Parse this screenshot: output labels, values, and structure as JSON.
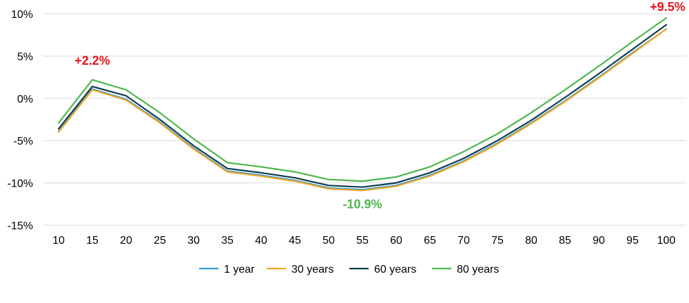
{
  "chart_data": {
    "type": "line",
    "x": [
      10,
      15,
      20,
      25,
      30,
      35,
      40,
      45,
      50,
      55,
      60,
      65,
      70,
      75,
      80,
      85,
      90,
      95,
      100
    ],
    "x_tick_labels": [
      "10",
      "15",
      "20",
      "25",
      "30",
      "35",
      "40",
      "45",
      "50",
      "55",
      "60",
      "65",
      "70",
      "75",
      "80",
      "85",
      "90",
      "95",
      "100"
    ],
    "ylim": [
      -15,
      10
    ],
    "y_ticks": [
      10,
      5,
      0,
      -5,
      -10,
      -15
    ],
    "y_tick_labels": [
      "10%",
      "5%",
      "0%",
      "-5%",
      "-10%",
      "-15%"
    ],
    "grid": "horizontal",
    "legend_position": "bottom",
    "series": [
      {
        "name": "1 year",
        "color": "#2E9BD6",
        "values": [
          -3.9,
          1.1,
          -0.1,
          -2.8,
          -5.9,
          -8.6,
          -9.1,
          -9.7,
          -10.6,
          -10.8,
          -10.3,
          -9.1,
          -7.4,
          -5.3,
          -2.9,
          -0.3,
          2.5,
          5.4,
          8.2
        ]
      },
      {
        "name": "30 years",
        "color": "#F5A623",
        "values": [
          -4.0,
          1.0,
          -0.2,
          -2.9,
          -6.0,
          -8.7,
          -9.2,
          -9.8,
          -10.7,
          -10.9,
          -10.4,
          -9.2,
          -7.5,
          -5.4,
          -3.0,
          -0.4,
          2.4,
          5.3,
          8.2
        ]
      },
      {
        "name": "60 years",
        "color": "#0D3B4F",
        "values": [
          -3.6,
          1.4,
          0.3,
          -2.5,
          -5.6,
          -8.3,
          -8.8,
          -9.4,
          -10.3,
          -10.5,
          -10.0,
          -8.8,
          -7.1,
          -5.0,
          -2.6,
          0.1,
          2.9,
          5.8,
          8.7
        ]
      },
      {
        "name": "80 years",
        "color": "#4CB64C",
        "values": [
          -2.9,
          2.2,
          1.0,
          -1.7,
          -4.8,
          -7.6,
          -8.1,
          -8.7,
          -9.6,
          -9.8,
          -9.3,
          -8.1,
          -6.3,
          -4.2,
          -1.7,
          1.0,
          3.8,
          6.7,
          9.5
        ]
      }
    ],
    "annotations": [
      {
        "text": "+2.2%",
        "x": 15,
        "y": 2.2,
        "color": "#E8131B"
      },
      {
        "text": "-10.9%",
        "x": 55,
        "y": -10.9,
        "color": "#4CB64C"
      },
      {
        "text": "+9.5%",
        "x": 100,
        "y": 9.5,
        "color": "#E8131B"
      }
    ]
  }
}
